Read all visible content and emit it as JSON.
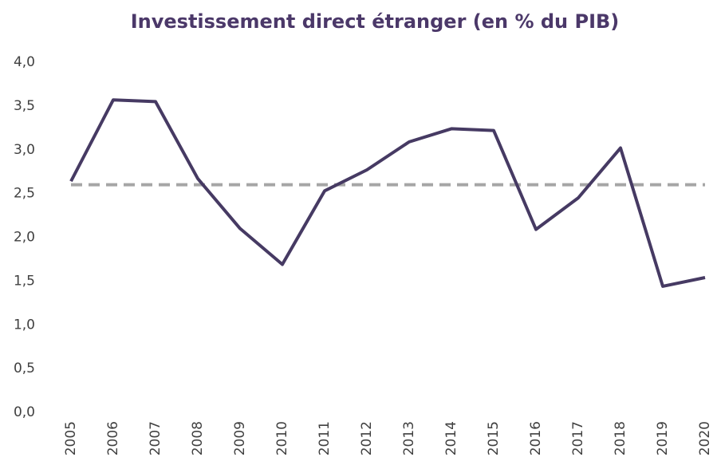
{
  "chart_data": {
    "type": "line",
    "title": "Investissement direct étranger (en % du PIB)",
    "categories": [
      "2005",
      "2006",
      "2007",
      "2008",
      "2009",
      "2010",
      "2011",
      "2012",
      "2013",
      "2014",
      "2015",
      "2016",
      "2017",
      "2018",
      "2019",
      "2020"
    ],
    "series": [
      {
        "color": "#463a63",
        "values": [
          2.64,
          3.57,
          3.55,
          2.67,
          2.1,
          1.69,
          2.53,
          2.77,
          3.09,
          3.24,
          3.22,
          2.09,
          2.45,
          3.02,
          1.44,
          1.54
        ]
      },
      {
        "color": "#a6a6a6",
        "dashed": true,
        "values": [
          2.6,
          2.6,
          2.6,
          2.6,
          2.6,
          2.6,
          2.6,
          2.6,
          2.6,
          2.6,
          2.6,
          2.6,
          2.6,
          2.6,
          2.6,
          2.6
        ]
      }
    ],
    "ylim": [
      0,
      4
    ],
    "yticks": [
      {
        "value": 0,
        "label": "0,0"
      },
      {
        "value": 0.5,
        "label": "0,5"
      },
      {
        "value": 1,
        "label": "1,0"
      },
      {
        "value": 1.5,
        "label": "1,5"
      },
      {
        "value": 2,
        "label": "2,0"
      },
      {
        "value": 2.5,
        "label": "2,5"
      },
      {
        "value": 3,
        "label": "3,0"
      },
      {
        "value": 3.5,
        "label": "3,5"
      },
      {
        "value": 4,
        "label": "4,0"
      }
    ],
    "grid": false
  }
}
